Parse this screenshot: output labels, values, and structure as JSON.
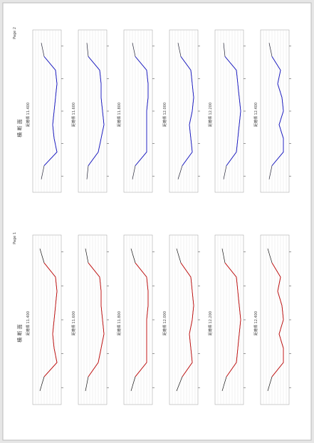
{
  "pages": [
    {
      "page_label": "Page 2",
      "title": "横 断 面",
      "line_color": "#1a1acc",
      "panels": [
        {
          "label": "距離標 11.400",
          "profile": [
            3,
            4,
            8,
            8.5,
            8,
            7.5,
            7,
            7.5,
            8.5,
            4,
            3
          ]
        },
        {
          "label": "距離標 11.600",
          "profile": [
            3,
            3.5,
            7.5,
            8,
            8,
            8.5,
            9,
            8,
            7,
            3.5,
            3
          ]
        },
        {
          "label": "距離標 11.800",
          "profile": [
            3,
            4,
            8,
            8.5,
            8.5,
            8,
            8,
            8,
            8,
            4,
            3
          ]
        },
        {
          "label": "距離標 12.000",
          "profile": [
            3,
            4,
            7.5,
            8,
            8.5,
            8,
            7,
            7.5,
            8,
            4.5,
            3
          ]
        },
        {
          "label": "距離標 12.200",
          "profile": [
            3,
            3.5,
            7.5,
            8,
            8.5,
            9,
            8.5,
            8,
            7.5,
            4,
            3
          ]
        },
        {
          "label": "距離標 12.400",
          "profile": [
            3,
            4,
            7,
            6,
            7.5,
            8,
            6.5,
            8,
            8,
            4,
            3
          ]
        }
      ]
    },
    {
      "page_label": "Page 1",
      "title": "横 断 面",
      "line_color": "#cc1010",
      "panels": [
        {
          "label": "距離標 11.400",
          "profile": [
            2.5,
            4,
            8,
            8.5,
            8,
            7.5,
            7,
            7.5,
            8.5,
            4,
            2.5
          ]
        },
        {
          "label": "距離標 11.600",
          "profile": [
            2.5,
            3.5,
            7.5,
            8,
            8,
            8.5,
            9,
            8,
            7,
            3.5,
            2.5
          ]
        },
        {
          "label": "距離標 11.800",
          "profile": [
            2.5,
            4,
            8,
            8.5,
            8.5,
            8,
            8,
            8,
            8,
            4,
            2.5
          ]
        },
        {
          "label": "距離標 12.000",
          "profile": [
            2.5,
            4,
            7.5,
            8,
            8.5,
            8,
            7,
            7.5,
            8,
            4.5,
            2.5
          ]
        },
        {
          "label": "距離標 12.200",
          "profile": [
            2.5,
            3.5,
            7.5,
            8,
            8.5,
            9,
            8.5,
            8,
            7.5,
            4,
            2.5
          ]
        },
        {
          "label": "距離標 12.400",
          "profile": [
            2.5,
            4,
            7,
            6,
            7.5,
            8,
            6.5,
            8,
            8,
            4,
            2.5
          ]
        }
      ]
    }
  ]
}
